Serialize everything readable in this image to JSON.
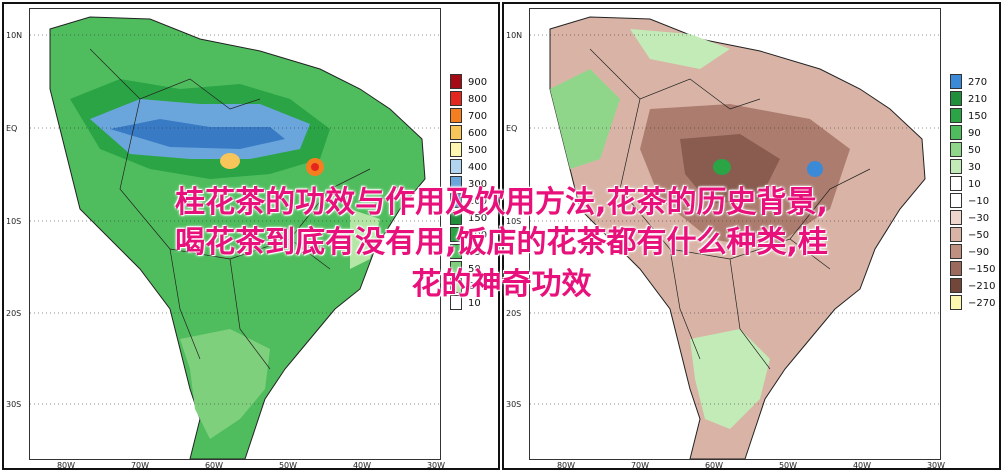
{
  "overlay": {
    "line1": "桂花茶的功效与作用及饮用方法,花茶的历史背景,",
    "line2": "喝花茶到底有没有用,饭店的花茶都有什么种类,桂",
    "line3": "花的神奇功效",
    "color": "#e8107a"
  },
  "left_map": {
    "lat_labels": [
      "10N",
      "EQ",
      "10S",
      "20S",
      "30S"
    ],
    "lon_labels": [
      "80W",
      "70W",
      "60W",
      "50W",
      "40W",
      "30W"
    ],
    "legend": [
      {
        "label": "900",
        "color": "#a60a14"
      },
      {
        "label": "800",
        "color": "#e5261e"
      },
      {
        "label": "700",
        "color": "#f57e20"
      },
      {
        "label": "600",
        "color": "#f8c55a"
      },
      {
        "label": "500",
        "color": "#fdf6b0"
      },
      {
        "label": "400",
        "color": "#b3d4ee"
      },
      {
        "label": "300",
        "color": "#6aa6dc"
      },
      {
        "label": "200",
        "color": "#2d6fbe"
      },
      {
        "label": "150",
        "color": "#1f8f3c"
      },
      {
        "label": "100",
        "color": "#2aa445"
      },
      {
        "label": "75",
        "color": "#4fbd5d"
      },
      {
        "label": "50",
        "color": "#7fd07d"
      },
      {
        "label": "25",
        "color": "#b4e6a5"
      },
      {
        "label": "10",
        "color": "#ffffff"
      }
    ]
  },
  "right_map": {
    "lat_labels": [
      "10N",
      "EQ",
      "10S",
      "20S",
      "30S"
    ],
    "lon_labels": [
      "80W",
      "70W",
      "60W",
      "50W",
      "40W",
      "30W"
    ],
    "legend": [
      {
        "label": "270",
        "color": "#3a8ad8"
      },
      {
        "label": "210",
        "color": "#1f8f3c"
      },
      {
        "label": "150",
        "color": "#2aa445"
      },
      {
        "label": "90",
        "color": "#4fbd5d"
      },
      {
        "label": "50",
        "color": "#8fd68a"
      },
      {
        "label": "30",
        "color": "#c2ebb7"
      },
      {
        "label": "10",
        "color": "#ffffff"
      },
      {
        "label": "−10",
        "color": "#ffffff"
      },
      {
        "label": "−30",
        "color": "#eed6cc"
      },
      {
        "label": "−50",
        "color": "#d9b4a6"
      },
      {
        "label": "−90",
        "color": "#bf8f80"
      },
      {
        "label": "−150",
        "color": "#9c6a5c"
      },
      {
        "label": "−210",
        "color": "#72473a"
      },
      {
        "label": "−270",
        "color": "#fdf6b0"
      }
    ]
  }
}
